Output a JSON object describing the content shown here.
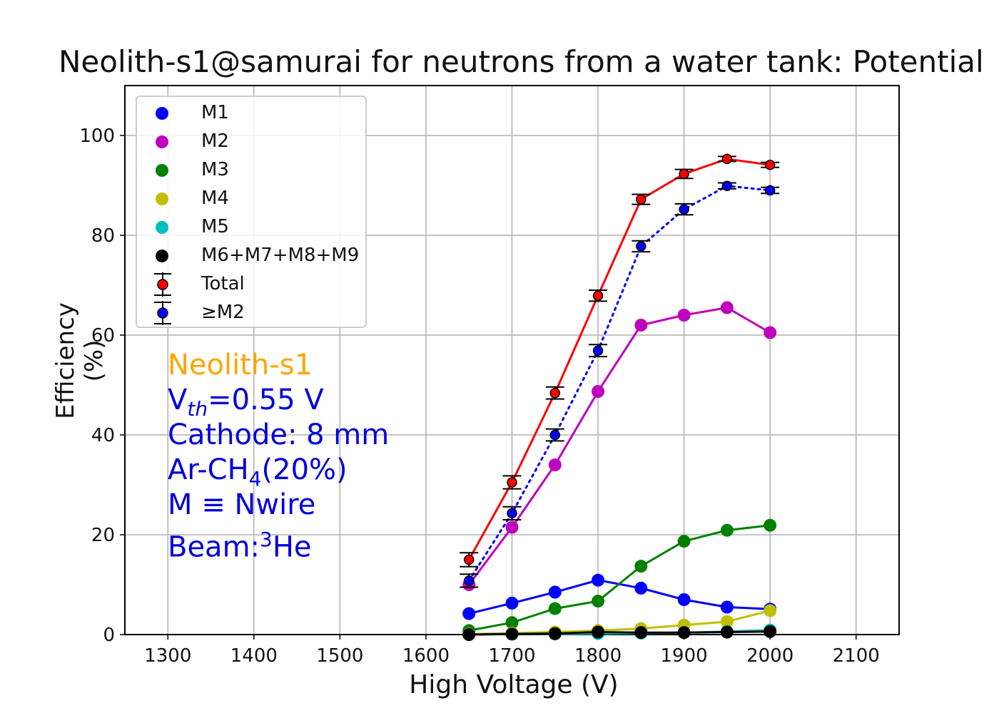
{
  "chart_data": {
    "type": "line",
    "title": "Neolith-s1@samurai for neutrons from a water tank: Potential",
    "xlabel": "High Voltage (V)",
    "ylabel": "Efficiency (%)",
    "xlim": [
      1250,
      2150
    ],
    "ylim": [
      0,
      110
    ],
    "xticks": [
      1300,
      1400,
      1500,
      1600,
      1700,
      1800,
      1900,
      2000,
      2100
    ],
    "yticks": [
      0,
      20,
      40,
      60,
      80,
      100
    ],
    "grid": true,
    "legend_position": "upper-left",
    "x": [
      1650,
      1700,
      1750,
      1800,
      1850,
      1900,
      1950,
      2000
    ],
    "series": [
      {
        "name": "M1",
        "color": "#0000ff",
        "values": [
          4.2,
          6.3,
          8.5,
          10.9,
          9.3,
          7.0,
          5.5,
          5.1
        ]
      },
      {
        "name": "M2",
        "color": "#bf00bf",
        "values": [
          10.0,
          21.5,
          34.0,
          48.7,
          62.0,
          64.0,
          65.5,
          60.5
        ]
      },
      {
        "name": "M3",
        "color": "#008000",
        "values": [
          0.8,
          2.4,
          5.2,
          6.7,
          13.7,
          18.7,
          20.9,
          21.9
        ]
      },
      {
        "name": "M4",
        "color": "#bfbf00",
        "values": [
          0.1,
          0.3,
          0.5,
          0.8,
          1.2,
          1.9,
          2.6,
          4.8
        ]
      },
      {
        "name": "M5",
        "color": "#00bfbf",
        "values": [
          0.0,
          0.1,
          0.1,
          0.2,
          0.3,
          0.4,
          0.6,
          0.9
        ]
      },
      {
        "name": "M6+M7+M8+M9",
        "color": "#000000",
        "values": [
          0.0,
          0.1,
          0.2,
          0.5,
          0.4,
          0.4,
          0.5,
          0.6
        ]
      },
      {
        "name": "Total",
        "color": "#ff0000",
        "line": "solid",
        "errorbars": true,
        "values": [
          15.0,
          30.5,
          48.4,
          67.9,
          87.2,
          92.3,
          95.3,
          94.1
        ],
        "errors": [
          1.4,
          1.3,
          1.2,
          1.1,
          1.0,
          0.9,
          0.5,
          0.5
        ]
      },
      {
        "name": "≥M2",
        "color": "#0000ff",
        "line": "dotted",
        "errorbars": true,
        "values": [
          10.8,
          24.3,
          40.0,
          56.9,
          77.8,
          85.2,
          89.9,
          89.0
        ],
        "errors": [
          1.3,
          1.3,
          1.2,
          1.2,
          1.1,
          1.1,
          0.6,
          0.6
        ]
      }
    ],
    "annotations": [
      {
        "text": "Neolith-s1",
        "color": "#ffa500"
      },
      {
        "text_main": "V",
        "text_sub": "th",
        "text_tail": "=0.55 V",
        "color": "#0000dd"
      },
      {
        "text": "Cathode: 8 mm",
        "color": "#0000dd"
      },
      {
        "text_main": "Ar-CH",
        "text_sub": "4",
        "text_tail": "(20%)",
        "color": "#0000dd"
      },
      {
        "text": "M ≡ Nwire",
        "color": "#0000dd"
      },
      {
        "text_main": "Beam:",
        "text_sup": "3",
        "text_tail": "He",
        "color": "#0000dd"
      }
    ]
  }
}
